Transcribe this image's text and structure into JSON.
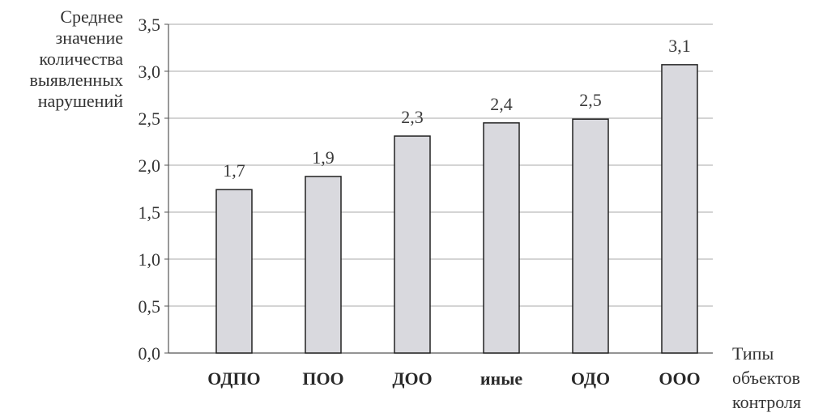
{
  "chart_data": {
    "type": "bar",
    "categories": [
      "ОДПО",
      "ПОО",
      "ДОО",
      "иные",
      "ОДО",
      "ООО"
    ],
    "values": [
      1.7,
      1.9,
      2.3,
      2.4,
      2.5,
      3.1
    ],
    "data_labels": [
      "1,7",
      "1,9",
      "2,3",
      "2,4",
      "2,5",
      "3,1"
    ],
    "true_values": [
      1.74,
      1.88,
      2.31,
      2.45,
      2.49,
      3.07
    ],
    "ylabel": "Среднее значение количества выявленных нарушений",
    "xlabel": "Типы объектов контроля",
    "ylim": [
      0,
      3.5
    ],
    "y_ticks": [
      0,
      0.5,
      1.0,
      1.5,
      2.0,
      2.5,
      3.0,
      3.5
    ],
    "y_tick_labels": [
      "0,0",
      "0,5",
      "1,0",
      "1,5",
      "2,0",
      "2,5",
      "3,0",
      "3,5"
    ],
    "grid": true,
    "bar_color": "#d9d9de",
    "bar_edge_color": "#222222",
    "grid_color": "#a8a8a8"
  }
}
